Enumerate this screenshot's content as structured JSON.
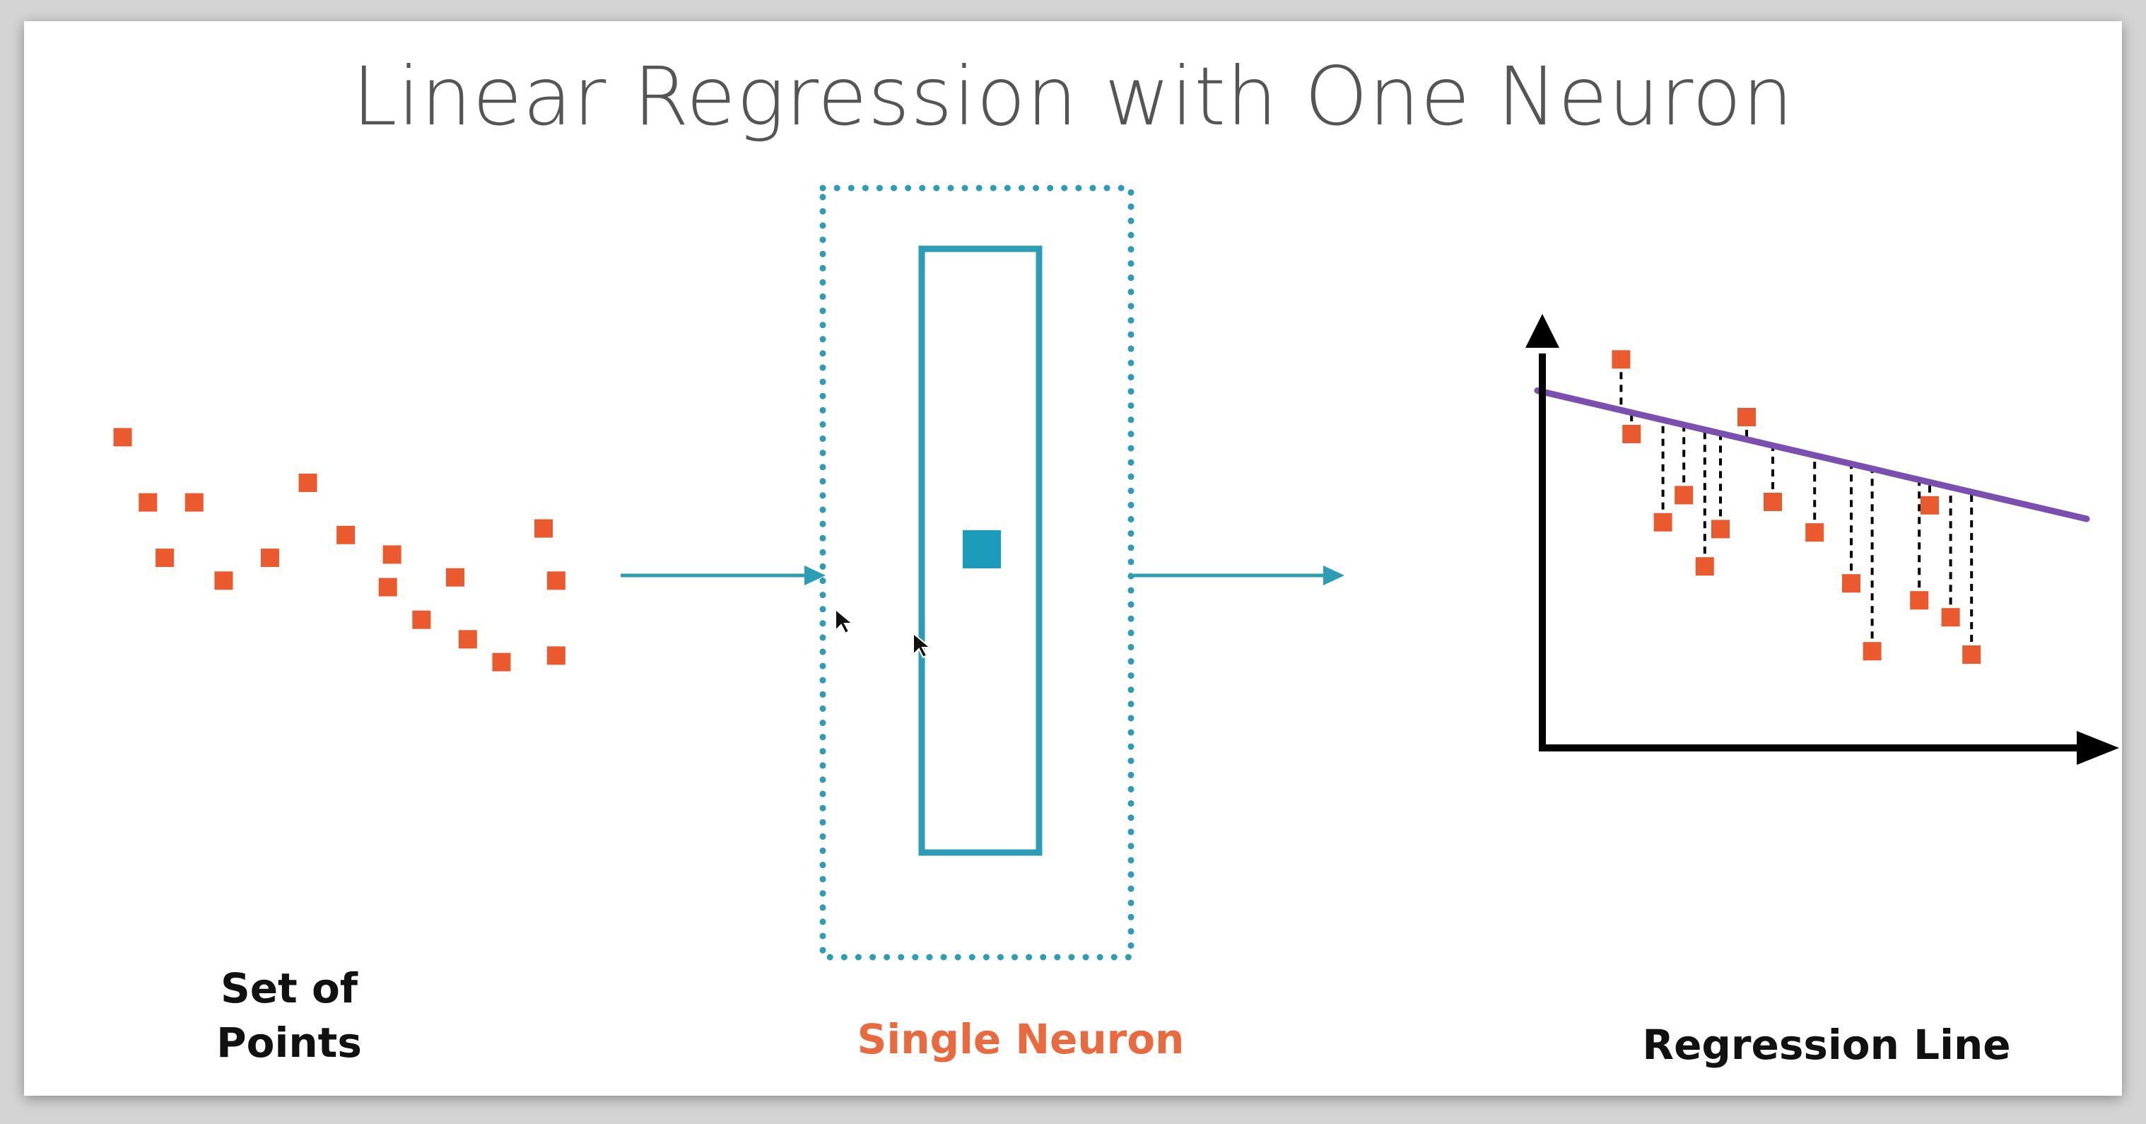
{
  "title": "Linear Regression with One Neuron",
  "labels": {
    "points": [
      "Set of",
      "Points"
    ],
    "neuron": "Single Neuron",
    "regression": "Regression Line"
  },
  "colors": {
    "point": "#ea5a2e",
    "teal": "#2d9cb5",
    "line": "#7b4fb0",
    "axis": "#000000"
  },
  "chart_data": {
    "type": "scatter",
    "title": "Regression Line",
    "xlabel": "",
    "ylabel": "",
    "xlim": [
      0,
      10
    ],
    "ylim": [
      0,
      10
    ],
    "regression": {
      "slope": -0.36,
      "intercept": 9.1
    },
    "points": [
      {
        "x": 1.1,
        "y": 10.2
      },
      {
        "x": 1.3,
        "y": 8.0
      },
      {
        "x": 1.9,
        "y": 5.4
      },
      {
        "x": 2.3,
        "y": 6.2
      },
      {
        "x": 2.7,
        "y": 4.1
      },
      {
        "x": 3.0,
        "y": 5.2
      },
      {
        "x": 3.5,
        "y": 8.5
      },
      {
        "x": 4.0,
        "y": 6.0
      },
      {
        "x": 4.8,
        "y": 5.1
      },
      {
        "x": 5.5,
        "y": 3.6
      },
      {
        "x": 5.9,
        "y": 1.6
      },
      {
        "x": 6.8,
        "y": 3.1
      },
      {
        "x": 7.0,
        "y": 5.9
      },
      {
        "x": 7.4,
        "y": 2.6
      },
      {
        "x": 7.8,
        "y": 1.5
      }
    ]
  },
  "scatter_points": [
    {
      "x": 1.0,
      "y": 8.6
    },
    {
      "x": 1.6,
      "y": 6.6
    },
    {
      "x": 2.7,
      "y": 6.6
    },
    {
      "x": 2.0,
      "y": 4.9
    },
    {
      "x": 3.4,
      "y": 4.2
    },
    {
      "x": 4.5,
      "y": 4.9
    },
    {
      "x": 5.4,
      "y": 7.2
    },
    {
      "x": 6.3,
      "y": 5.6
    },
    {
      "x": 7.4,
      "y": 5.0
    },
    {
      "x": 7.3,
      "y": 4.0
    },
    {
      "x": 8.9,
      "y": 4.3
    },
    {
      "x": 8.1,
      "y": 3.0
    },
    {
      "x": 9.2,
      "y": 2.4
    },
    {
      "x": 10.0,
      "y": 1.7
    },
    {
      "x": 11.0,
      "y": 5.8
    },
    {
      "x": 11.3,
      "y": 4.2
    },
    {
      "x": 11.3,
      "y": 1.9
    }
  ],
  "icons": {
    "neuron_dot": "neuron-dot-icon",
    "arrow": "arrow-right-icon",
    "cursor": "cursor-icon"
  }
}
